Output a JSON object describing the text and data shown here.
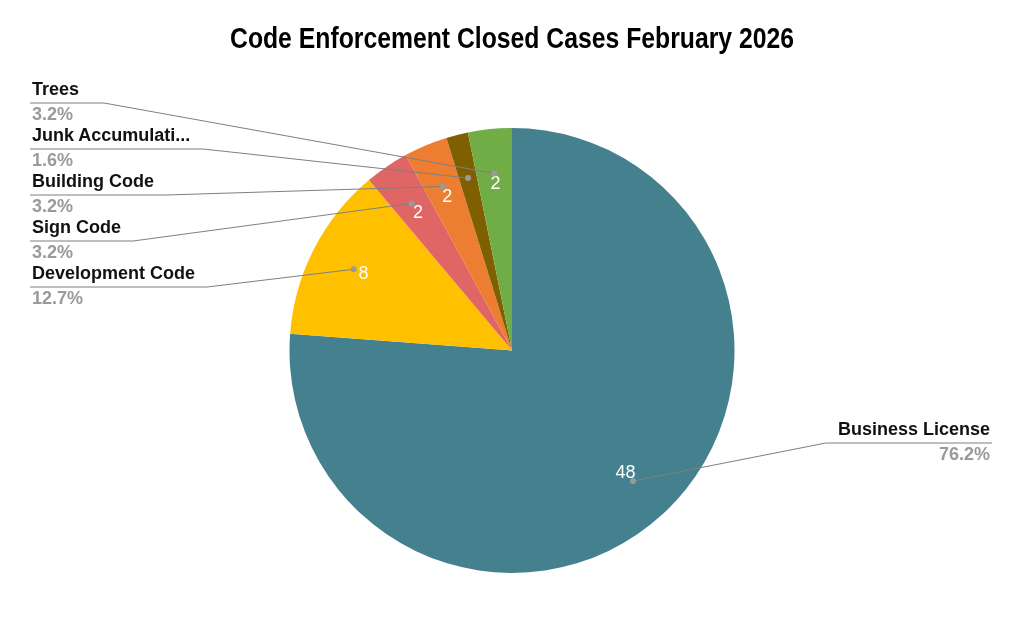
{
  "chart_data": {
    "type": "pie",
    "title": "Code Enforcement Closed Cases February 2026",
    "categories": [
      "Business License",
      "Development Code",
      "Sign Code",
      "Building Code",
      "Junk Accumulati...",
      "Trees"
    ],
    "values": [
      48,
      8,
      2,
      2,
      1,
      2
    ],
    "colors": [
      "#45808e",
      "#ffc000",
      "#e06666",
      "#ed7d31",
      "#7f6000",
      "#70ad47"
    ],
    "value_labels": [
      "48",
      "8",
      "2",
      "2",
      null,
      "2"
    ],
    "annotations": [
      "76.2%",
      "12.7%",
      "3.2%",
      "3.2%",
      "1.6%",
      "3.2%"
    ],
    "legend": false
  }
}
